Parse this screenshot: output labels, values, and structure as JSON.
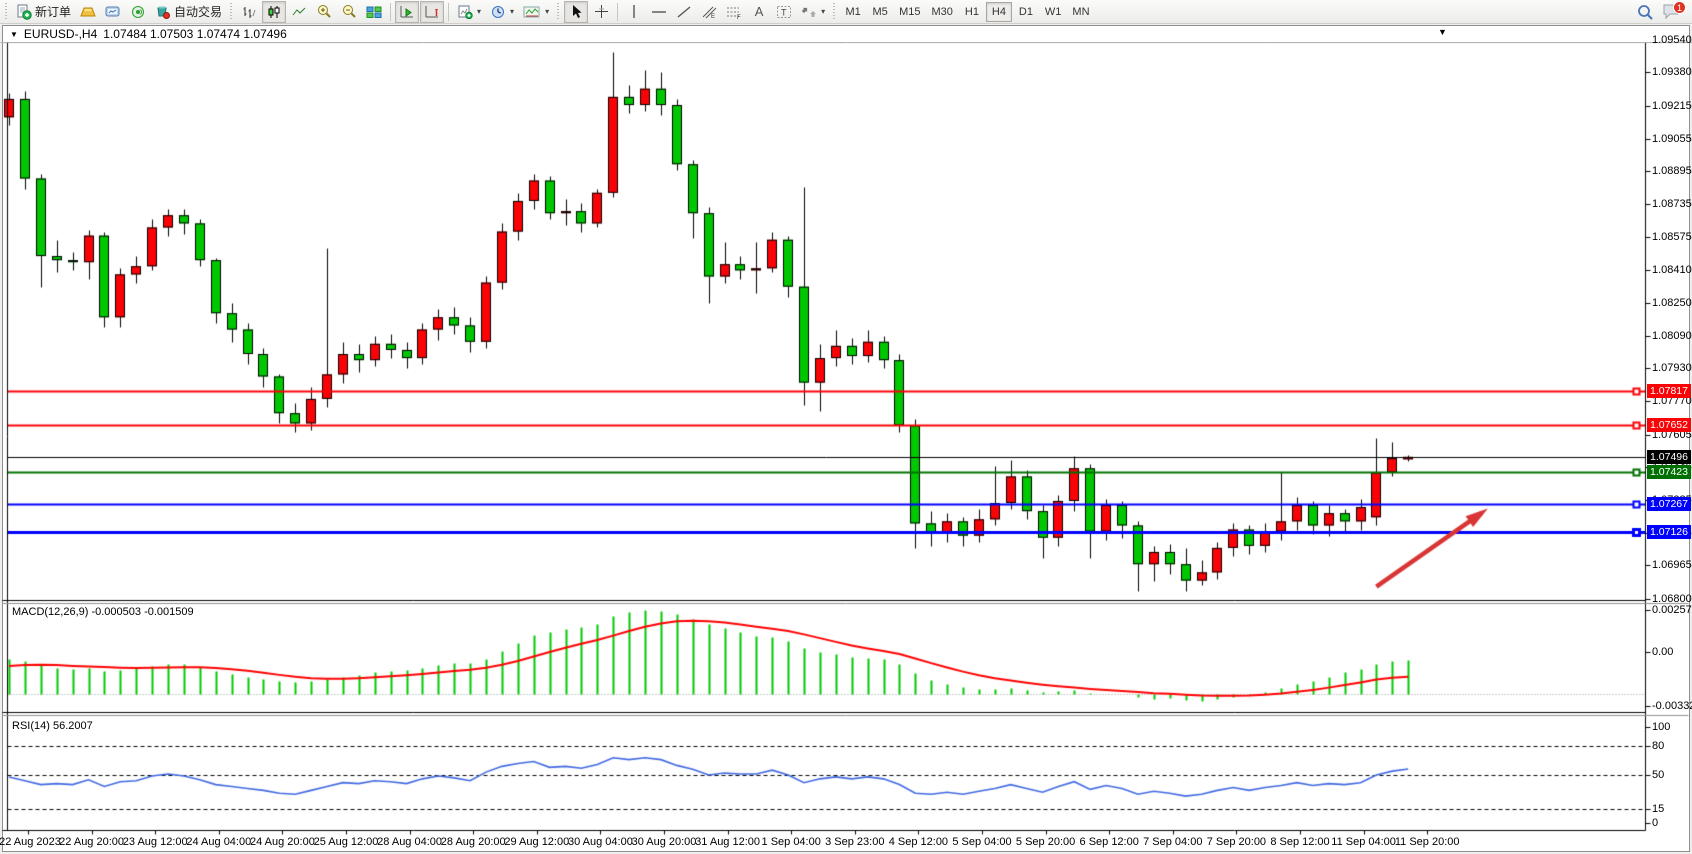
{
  "toolbar": {
    "new_order_label": "新订单",
    "auto_trading_label": "自动交易",
    "text_tool_label": "A",
    "label_tool_label": "T",
    "timeframes": [
      {
        "label": "M1",
        "active": false
      },
      {
        "label": "M5",
        "active": false
      },
      {
        "label": "M15",
        "active": false
      },
      {
        "label": "M30",
        "active": false
      },
      {
        "label": "H1",
        "active": false
      },
      {
        "label": "H4",
        "active": true
      },
      {
        "label": "D1",
        "active": false
      },
      {
        "label": "W1",
        "active": false
      },
      {
        "label": "MN",
        "active": false
      }
    ]
  },
  "notifications": {
    "badge": "1"
  },
  "window": {
    "symbol_tf": "EURUSD-,H4",
    "quote": "1.07484 1.07503 1.07474 1.07496",
    "menu_caret": "▼",
    "shift_marker": "▼"
  },
  "chart_data": {
    "type": "candlestick",
    "symbol": "EURUSD-",
    "timeframe": "H4",
    "current_bar": {
      "open": "1.07484",
      "high": "1.07503",
      "low": "1.07474",
      "close": "1.07496"
    },
    "colors": {
      "up": "#fb0207",
      "down": "#00c800",
      "wick": "#000000",
      "macd_hist": "#00ca00",
      "macd_signal": "#ff0000",
      "rsi_line": "#4169e1",
      "arrow": "#d93535"
    },
    "price_axis_ticks": [
      "1.09540",
      "1.09380",
      "1.09215",
      "1.09055",
      "1.08895",
      "1.08735",
      "1.08575",
      "1.08410",
      "1.08250",
      "1.08090",
      "1.07930",
      "1.07770",
      "1.07605",
      "1.07445",
      "1.07285",
      "1.07125",
      "1.06965",
      "1.06800"
    ],
    "hlines": [
      {
        "price": 1.07817,
        "label": "1.07817",
        "color": "#fb0207",
        "width": 2
      },
      {
        "price": 1.07652,
        "label": "1.07652",
        "color": "#fb0207",
        "width": 2
      },
      {
        "price": 1.07496,
        "label": "1.07496",
        "color": "#000000",
        "width": 1
      },
      {
        "price": 1.07423,
        "label": "1.07423",
        "color": "#007000",
        "width": 2
      },
      {
        "price": 1.07267,
        "label": "1.07267",
        "color": "#0000ff",
        "width": 2
      },
      {
        "price": 1.07126,
        "label": "1.07126",
        "color": "#0000ff",
        "width": 3
      }
    ],
    "candles": [
      [
        1.0916,
        1.0928,
        1.0912,
        1.0925
      ],
      [
        1.0925,
        1.0929,
        1.0881,
        1.0886
      ],
      [
        1.0886,
        1.0888,
        1.0833,
        1.0848
      ],
      [
        1.0848,
        1.0856,
        1.084,
        1.0846
      ],
      [
        1.0846,
        1.085,
        1.0841,
        1.0845
      ],
      [
        1.0845,
        1.0861,
        1.0837,
        1.0858
      ],
      [
        1.0858,
        1.086,
        1.0813,
        1.0818
      ],
      [
        1.0818,
        1.0842,
        1.0813,
        1.0839
      ],
      [
        1.0839,
        1.0848,
        1.0835,
        1.0843
      ],
      [
        1.0843,
        1.0866,
        1.0841,
        1.0862
      ],
      [
        1.0862,
        1.0871,
        1.0858,
        1.0868
      ],
      [
        1.0868,
        1.0871,
        1.0859,
        1.0864
      ],
      [
        1.0864,
        1.0866,
        1.0843,
        1.0846
      ],
      [
        1.0846,
        1.0847,
        1.0815,
        1.082
      ],
      [
        1.082,
        1.0825,
        1.0806,
        1.0812
      ],
      [
        1.0812,
        1.0815,
        1.0795,
        1.08
      ],
      [
        1.08,
        1.0803,
        1.0784,
        1.0789
      ],
      [
        1.0789,
        1.079,
        1.0766,
        1.0771
      ],
      [
        1.0771,
        1.0776,
        1.0762,
        1.0766
      ],
      [
        1.0766,
        1.0784,
        1.0763,
        1.0778
      ],
      [
        1.0778,
        1.0852,
        1.0774,
        1.079
      ],
      [
        1.079,
        1.0806,
        1.0786,
        1.08
      ],
      [
        1.08,
        1.0805,
        1.0791,
        1.0797
      ],
      [
        1.0797,
        1.0809,
        1.0794,
        1.0805
      ],
      [
        1.0805,
        1.081,
        1.0798,
        1.0802
      ],
      [
        1.0802,
        1.0806,
        1.0793,
        1.0798
      ],
      [
        1.0798,
        1.0815,
        1.0795,
        1.0812
      ],
      [
        1.0812,
        1.0822,
        1.0807,
        1.0818
      ],
      [
        1.0818,
        1.0823,
        1.081,
        1.0814
      ],
      [
        1.0814,
        1.0818,
        1.0801,
        1.0806
      ],
      [
        1.0806,
        1.0838,
        1.0803,
        1.0835
      ],
      [
        1.0835,
        1.0864,
        1.0832,
        1.086
      ],
      [
        1.086,
        1.0879,
        1.0856,
        1.0875
      ],
      [
        1.0875,
        1.0888,
        1.0871,
        1.0885
      ],
      [
        1.0885,
        1.0887,
        1.0866,
        1.0869
      ],
      [
        1.0869,
        1.0876,
        1.0863,
        1.087
      ],
      [
        1.087,
        1.0874,
        1.086,
        1.0864
      ],
      [
        1.0864,
        1.0881,
        1.0862,
        1.0879
      ],
      [
        1.0879,
        1.0948,
        1.0877,
        1.0926
      ],
      [
        1.0926,
        1.0932,
        1.0918,
        1.0922
      ],
      [
        1.0922,
        1.0939,
        1.0919,
        1.093
      ],
      [
        1.093,
        1.0938,
        1.0917,
        1.0922
      ],
      [
        1.0922,
        1.0925,
        1.089,
        1.0893
      ],
      [
        1.0893,
        1.0895,
        1.0857,
        1.0869
      ],
      [
        1.0869,
        1.0872,
        1.0825,
        1.0838
      ],
      [
        1.0838,
        1.0855,
        1.0835,
        1.0844
      ],
      [
        1.0844,
        1.0848,
        1.0837,
        1.0841
      ],
      [
        1.0841,
        1.0855,
        1.083,
        1.0842
      ],
      [
        1.0842,
        1.086,
        1.084,
        1.0856
      ],
      [
        1.0856,
        1.0858,
        1.0828,
        1.0833
      ],
      [
        1.0833,
        1.0882,
        1.0775,
        1.0786
      ],
      [
        1.0786,
        1.0805,
        1.0772,
        1.0798
      ],
      [
        1.0798,
        1.0812,
        1.0794,
        1.0804
      ],
      [
        1.0804,
        1.0808,
        1.0795,
        1.0799
      ],
      [
        1.0799,
        1.0812,
        1.0796,
        1.0806
      ],
      [
        1.0806,
        1.0809,
        1.0793,
        1.0797
      ],
      [
        1.0797,
        1.08,
        1.0762,
        1.0765
      ],
      [
        1.0765,
        1.0768,
        1.0705,
        1.0717
      ],
      [
        1.0717,
        1.0723,
        1.0706,
        1.0712
      ],
      [
        1.0712,
        1.0722,
        1.0708,
        1.0718
      ],
      [
        1.0718,
        1.072,
        1.0706,
        1.0711
      ],
      [
        1.0711,
        1.0724,
        1.0708,
        1.0719
      ],
      [
        1.0719,
        1.0745,
        1.0716,
        1.0727
      ],
      [
        1.0727,
        1.0748,
        1.0724,
        1.074
      ],
      [
        1.074,
        1.0743,
        1.0719,
        1.0723
      ],
      [
        1.0723,
        1.0726,
        1.07,
        1.071
      ],
      [
        1.071,
        1.0731,
        1.0706,
        1.0728
      ],
      [
        1.0728,
        1.075,
        1.0723,
        1.0744
      ],
      [
        1.0744,
        1.0746,
        1.07,
        1.0713
      ],
      [
        1.0713,
        1.0729,
        1.0709,
        1.0726
      ],
      [
        1.0726,
        1.0728,
        1.071,
        1.0716
      ],
      [
        1.0716,
        1.0718,
        1.0684,
        1.0697
      ],
      [
        1.0697,
        1.0706,
        1.0689,
        1.0703
      ],
      [
        1.0703,
        1.0707,
        1.0692,
        1.0697
      ],
      [
        1.0697,
        1.0705,
        1.0684,
        1.0689
      ],
      [
        1.0689,
        1.0699,
        1.0687,
        1.0693
      ],
      [
        1.0693,
        1.0708,
        1.069,
        1.0705
      ],
      [
        1.0705,
        1.0717,
        1.0701,
        1.0714
      ],
      [
        1.0714,
        1.0716,
        1.0702,
        1.0706
      ],
      [
        1.0706,
        1.0717,
        1.0703,
        1.0713
      ],
      [
        1.0713,
        1.0742,
        1.0709,
        1.0718
      ],
      [
        1.0718,
        1.073,
        1.0714,
        1.0726
      ],
      [
        1.0726,
        1.0728,
        1.0712,
        1.0716
      ],
      [
        1.0716,
        1.0726,
        1.0711,
        1.0722
      ],
      [
        1.0722,
        1.0724,
        1.0713,
        1.0718
      ],
      [
        1.0718,
        1.0729,
        1.0714,
        1.0725
      ],
      [
        1.072,
        1.0759,
        1.0716,
        1.0742
      ],
      [
        1.0742,
        1.0757,
        1.074,
        1.0749
      ],
      [
        1.07484,
        1.07503,
        1.07474,
        1.07496
      ]
    ],
    "macd": {
      "label": "MACD(12,26,9) -0.000503 -0.001509",
      "axis_ticks": [
        "0.002572",
        "0.00",
        "-0.003326"
      ],
      "hist": [
        -0.0004,
        -0.00055,
        -0.00075,
        -0.00095,
        -0.00105,
        -0.001,
        -0.00115,
        -0.0011,
        -0.001,
        -0.00085,
        -0.00075,
        -0.00075,
        -0.0009,
        -0.00115,
        -0.00135,
        -0.0015,
        -0.00165,
        -0.0018,
        -0.00185,
        -0.0018,
        -0.00165,
        -0.0015,
        -0.0014,
        -0.00125,
        -0.00115,
        -0.0011,
        -0.00095,
        -0.0008,
        -0.0007,
        -0.0007,
        -0.0004,
        5e-05,
        0.00055,
        0.00105,
        0.00125,
        0.0014,
        0.0015,
        0.0017,
        0.0022,
        0.00245,
        0.00258,
        0.0025,
        0.0023,
        0.00205,
        0.0017,
        0.00145,
        0.0012,
        0.001,
        0.0009,
        0.0007,
        0.00025,
        0.0,
        -0.00015,
        -0.0003,
        -0.00035,
        -0.00045,
        -0.00075,
        -0.0013,
        -0.0017,
        -0.00195,
        -0.00215,
        -0.00225,
        -0.00225,
        -0.0022,
        -0.0023,
        -0.00245,
        -0.0024,
        -0.00235,
        -0.0025,
        -0.00255,
        -0.0026,
        -0.00275,
        -0.00285,
        -0.0028,
        -0.00295,
        -0.003,
        -0.0029,
        -0.00275,
        -0.00265,
        -0.00245,
        -0.0022,
        -0.00195,
        -0.00175,
        -0.0015,
        -0.00125,
        -0.00105,
        -0.00075,
        -0.00058,
        -0.0005
      ],
      "signal": [
        -0.00085,
        -0.0008,
        -0.00078,
        -0.0008,
        -0.00085,
        -0.00088,
        -0.00092,
        -0.00096,
        -0.00098,
        -0.00097,
        -0.00095,
        -0.00093,
        -0.00094,
        -0.00098,
        -0.00105,
        -0.00115,
        -0.00127,
        -0.0014,
        -0.00152,
        -0.0016,
        -0.00163,
        -0.00163,
        -0.0016,
        -0.00155,
        -0.00149,
        -0.00142,
        -0.00134,
        -0.00125,
        -0.00116,
        -0.00108,
        -0.00096,
        -0.00078,
        -0.00055,
        -0.00028,
        0.0,
        0.00026,
        0.0005,
        0.00073,
        0.001,
        0.00128,
        0.00155,
        0.00175,
        0.00188,
        0.00192,
        0.00188,
        0.0018,
        0.00168,
        0.00155,
        0.00142,
        0.00128,
        0.00108,
        0.00085,
        0.00062,
        0.0004,
        0.00022,
        6e-05,
        -0.00012,
        -0.0004,
        -0.00068,
        -0.00095,
        -0.0012,
        -0.00142,
        -0.0016,
        -0.00175,
        -0.00188,
        -0.002,
        -0.0021,
        -0.00218,
        -0.00226,
        -0.00232,
        -0.00238,
        -0.00245,
        -0.00252,
        -0.00256,
        -0.00261,
        -0.00266,
        -0.00268,
        -0.00268,
        -0.00266,
        -0.00261,
        -0.00254,
        -0.00244,
        -0.00232,
        -0.00218,
        -0.00202,
        -0.00186,
        -0.00168,
        -0.00158,
        -0.00151
      ]
    },
    "rsi": {
      "label": "RSI(14) 56.2007",
      "axis_ticks": [
        "100",
        "80",
        "50",
        "15",
        "0"
      ],
      "levels": [
        80,
        50,
        15
      ],
      "values": [
        48,
        44,
        40,
        41,
        40,
        45,
        38,
        43,
        44,
        49,
        51,
        49,
        45,
        40,
        38,
        36,
        34,
        31,
        30,
        34,
        38,
        42,
        41,
        44,
        43,
        41,
        46,
        49,
        47,
        44,
        53,
        59,
        62,
        64,
        58,
        59,
        57,
        61,
        68,
        66,
        68,
        66,
        60,
        56,
        50,
        52,
        51,
        51,
        55,
        50,
        42,
        46,
        48,
        46,
        48,
        46,
        40,
        31,
        30,
        32,
        30,
        33,
        36,
        40,
        36,
        32,
        38,
        43,
        35,
        39,
        36,
        30,
        33,
        31,
        28,
        30,
        34,
        37,
        34,
        37,
        39,
        42,
        39,
        41,
        40,
        42,
        50,
        54,
        56.2
      ]
    },
    "time_labels": [
      "22 Aug 2023",
      "22 Aug 20:00",
      "23 Aug 12:00",
      "24 Aug 04:00",
      "24 Aug 20:00",
      "25 Aug 12:00",
      "28 Aug 04:00",
      "28 Aug 20:00",
      "29 Aug 12:00",
      "30 Aug 04:00",
      "30 Aug 20:00",
      "31 Aug 12:00",
      "1 Sep 04:00",
      "3 Sep 23:00",
      "4 Sep 12:00",
      "5 Sep 04:00",
      "5 Sep 20:00",
      "6 Sep 12:00",
      "7 Sep 04:00",
      "7 Sep 20:00",
      "8 Sep 12:00",
      "11 Sep 04:00",
      "11 Sep 20:00"
    ],
    "arrow": {
      "from_index": 86.0,
      "from_price": 1.0686,
      "to_index": 92.6,
      "to_price": 1.0722
    }
  }
}
